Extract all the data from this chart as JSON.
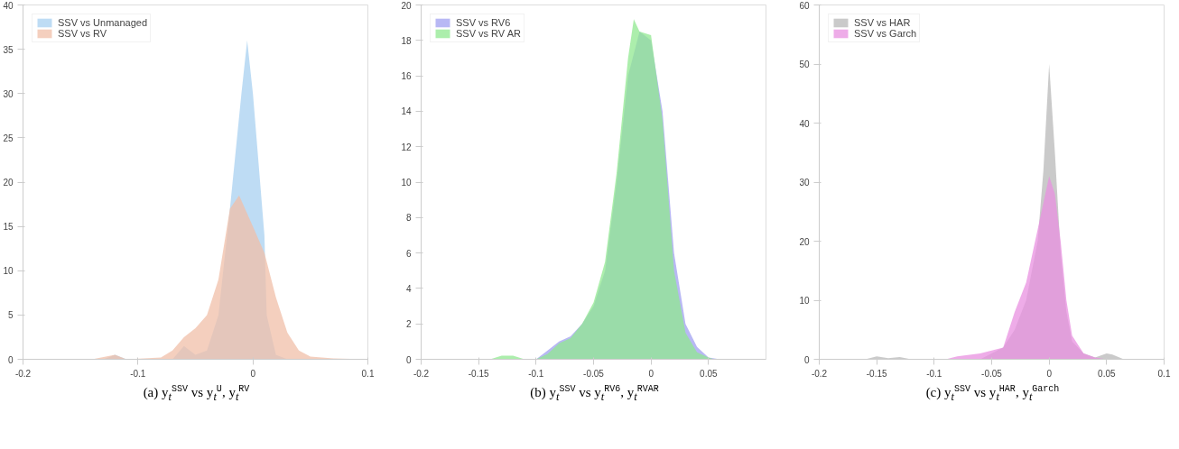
{
  "chart_data": [
    {
      "type": "area",
      "title": "(a) y$_{t}$$^{SSV}$ vs y$_{t}$$^{U}$, y$_{t}$$^{RV}$",
      "xlim": [
        -0.2,
        0.1
      ],
      "xticks": [
        -0.2,
        -0.1,
        0,
        0.1
      ],
      "ylim": [
        0,
        40
      ],
      "yticks": [
        0,
        5,
        10,
        15,
        20,
        25,
        30,
        35,
        40
      ],
      "grid": false,
      "legend": "top left",
      "series": [
        {
          "name": "SSV vs Unmanaged",
          "color": "#a8d0f0",
          "x": [
            -0.2,
            -0.13,
            -0.12,
            -0.11,
            -0.07,
            -0.06,
            -0.05,
            -0.04,
            -0.03,
            -0.02,
            -0.01,
            -0.005,
            0,
            0.005,
            0.01,
            0.012,
            0.02,
            0.03,
            0.1
          ],
          "values": [
            0,
            0,
            0.5,
            0,
            0,
            1.5,
            0.5,
            1,
            5,
            17,
            30,
            36,
            30,
            22,
            14,
            5,
            0.5,
            0,
            0
          ]
        },
        {
          "name": "SSV vs RV",
          "color": "#f0bfa8",
          "x": [
            -0.2,
            -0.14,
            -0.12,
            -0.11,
            -0.08,
            -0.07,
            -0.06,
            -0.05,
            -0.04,
            -0.03,
            -0.02,
            -0.012,
            0,
            0.01,
            0.02,
            0.03,
            0.04,
            0.05,
            0.07,
            0.1
          ],
          "values": [
            0,
            0,
            0.5,
            0,
            0.2,
            1,
            2.5,
            3.5,
            5,
            9,
            17,
            18.5,
            15,
            12,
            7,
            3,
            1,
            0.3,
            0.1,
            0
          ]
        }
      ]
    },
    {
      "type": "area",
      "title": "(b) y$_{t}$$^{SSV}$ vs y$_{t}$$^{RV6}$, y$_{t}$$^{RVAR}$",
      "xlim": [
        -0.2,
        0.1
      ],
      "xticks": [
        -0.2,
        -0.15,
        -0.1,
        -0.05,
        0,
        0.05
      ],
      "ylim": [
        0,
        20
      ],
      "yticks": [
        0,
        2,
        4,
        6,
        8,
        10,
        12,
        14,
        16,
        18,
        20
      ],
      "grid": false,
      "legend": "top left",
      "series": [
        {
          "name": "SSV vs RV6",
          "color": "#a0a0f0",
          "x": [
            -0.1,
            -0.09,
            -0.08,
            -0.07,
            -0.06,
            -0.05,
            -0.04,
            -0.03,
            -0.02,
            -0.01,
            0,
            0.01,
            0.02,
            0.03,
            0.04,
            0.05,
            0.06
          ],
          "values": [
            0,
            0.5,
            1,
            1.3,
            2,
            3,
            5,
            10,
            16,
            18.5,
            18,
            14,
            6,
            2,
            0.7,
            0.1,
            0
          ]
        },
        {
          "name": "SSV vs RV AR",
          "color": "#90e890",
          "x": [
            -0.14,
            -0.13,
            -0.12,
            -0.11,
            -0.1,
            -0.09,
            -0.08,
            -0.07,
            -0.06,
            -0.05,
            -0.04,
            -0.03,
            -0.02,
            -0.015,
            -0.01,
            0,
            0.01,
            0.02,
            0.03,
            0.04,
            0.05,
            0.055
          ],
          "values": [
            0,
            0.2,
            0.2,
            0,
            0,
            0.3,
            0.9,
            1.2,
            2,
            3.2,
            5.5,
            10.5,
            17,
            19.2,
            18.5,
            18.3,
            13.5,
            5,
            1.5,
            0.4,
            0.1,
            0
          ]
        }
      ]
    },
    {
      "type": "area",
      "title": "(c) y$_{t}$$^{SSV}$ vs y$_{t}$$^{HAR}$, y$_{t}$$^{Garch}$",
      "xlim": [
        -0.2,
        0.1
      ],
      "xticks": [
        -0.2,
        -0.15,
        -0.1,
        -0.05,
        0,
        0.05,
        0.1
      ],
      "ylim": [
        0,
        60
      ],
      "yticks": [
        0,
        10,
        20,
        30,
        40,
        50,
        60
      ],
      "grid": false,
      "legend": "top left",
      "series": [
        {
          "name": "SSV vs HAR",
          "color": "#b8b8b8",
          "x": [
            -0.16,
            -0.15,
            -0.14,
            -0.13,
            -0.12,
            -0.06,
            -0.05,
            -0.04,
            -0.03,
            -0.02,
            -0.01,
            -0.005,
            0,
            0.005,
            0.01,
            0.015,
            0.02,
            0.03,
            0.04,
            0.05,
            0.055,
            0.065
          ],
          "values": [
            0,
            0.5,
            0.2,
            0.4,
            0,
            0,
            1,
            2,
            5,
            10,
            20,
            32,
            50,
            35,
            18,
            8,
            3,
            1,
            0.3,
            1,
            0.8,
            0
          ]
        },
        {
          "name": "SSV vs Garch",
          "color": "#e890e0",
          "x": [
            -0.09,
            -0.08,
            -0.06,
            -0.04,
            -0.035,
            -0.03,
            -0.02,
            -0.01,
            0,
            0.005,
            0.01,
            0.015,
            0.02,
            0.03,
            0.04,
            0.05
          ],
          "values": [
            0,
            0.5,
            1,
            2,
            5,
            8,
            13,
            22,
            31,
            28,
            20,
            10,
            4,
            1,
            0.3,
            0
          ]
        }
      ]
    }
  ]
}
